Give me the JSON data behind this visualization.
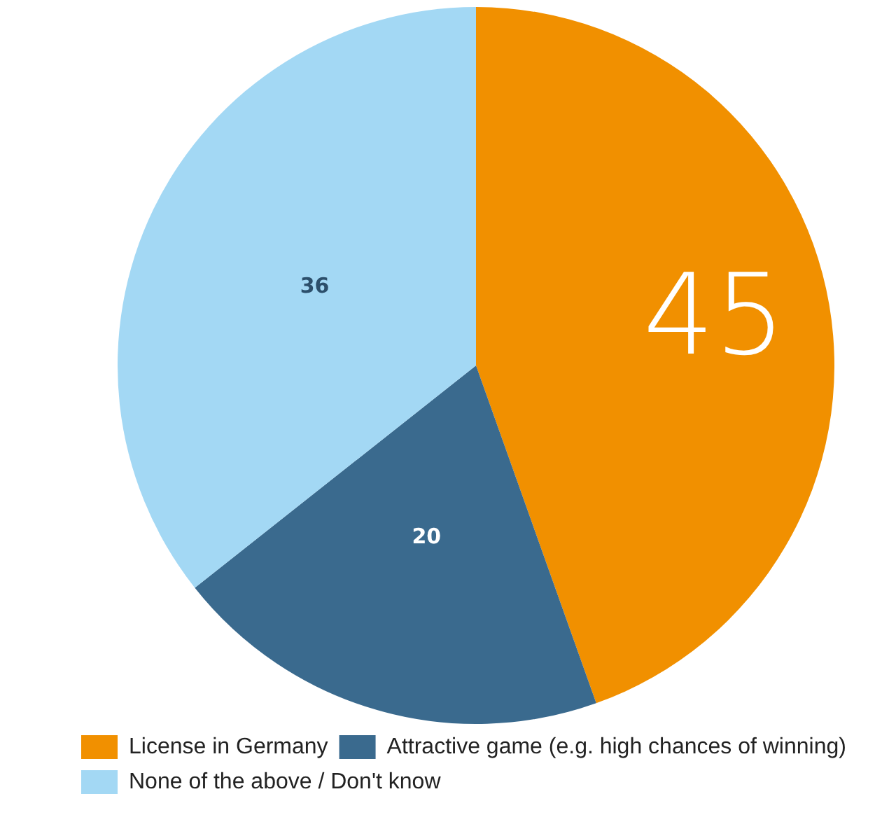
{
  "chart_data": {
    "type": "pie",
    "categories": [
      "License in Germany",
      "Attractive game (e.g. high chances of winning)",
      "None of the above / Don't know"
    ],
    "values": [
      45,
      20,
      36
    ],
    "colors": [
      "#f19000",
      "#3a6a8e",
      "#a3d8f4"
    ],
    "data_labels": true,
    "legend": "bottom left"
  }
}
